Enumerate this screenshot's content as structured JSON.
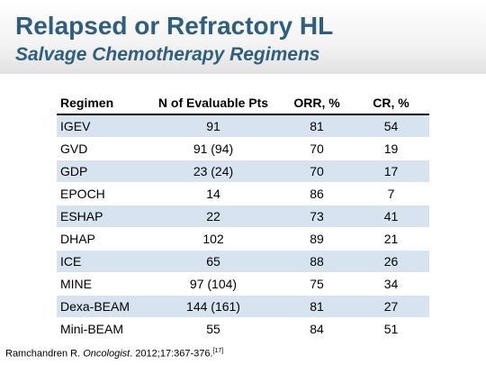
{
  "header": {
    "title": "Relapsed or Refractory HL",
    "subtitle": "Salvage Chemotherapy Regimens"
  },
  "table": {
    "columns": [
      "Regimen",
      "N of Evaluable Pts",
      "ORR, %",
      "CR, %"
    ],
    "rows": [
      [
        "IGEV",
        "91",
        "81",
        "54"
      ],
      [
        "GVD",
        "91 (94)",
        "70",
        "19"
      ],
      [
        "GDP",
        "23 (24)",
        "70",
        "17"
      ],
      [
        "EPOCH",
        "14",
        "86",
        "7"
      ],
      [
        "ESHAP",
        "22",
        "73",
        "41"
      ],
      [
        "DHAP",
        "102",
        "89",
        "21"
      ],
      [
        "ICE",
        "65",
        "88",
        "26"
      ],
      [
        "MINE",
        "97 (104)",
        "75",
        "34"
      ],
      [
        "Dexa-BEAM",
        "144 (161)",
        "81",
        "27"
      ],
      [
        "Mini-BEAM",
        "55",
        "84",
        "51"
      ]
    ]
  },
  "footer": {
    "author": "Ramchandren R. ",
    "journal": "Oncologist",
    "citation": ". 2012;17:367-376.",
    "ref": "[17]"
  },
  "colors": {
    "title": "#2e5e80",
    "row_shade": "#d7e3ef"
  }
}
